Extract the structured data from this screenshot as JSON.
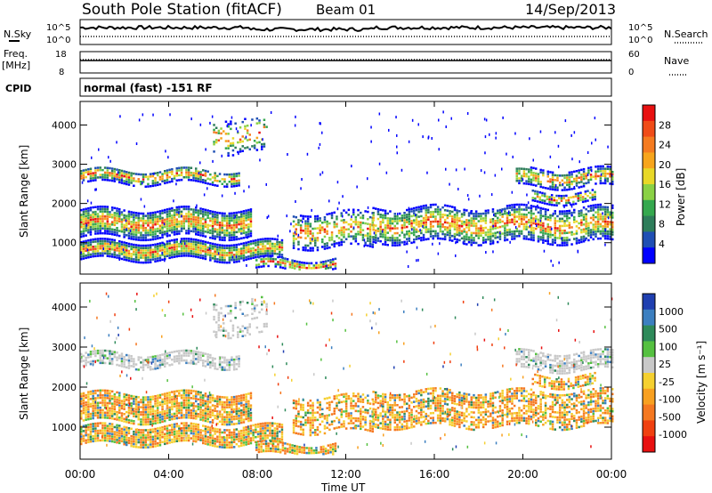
{
  "header": {
    "station": "South Pole Station (fitACF)",
    "beam": "Beam 01",
    "date": "14/Sep/2013"
  },
  "status_panels": {
    "nsky": {
      "label": "N.Sky",
      "top_tick": "10^5",
      "bottom_tick": "10^0"
    },
    "nsearch": {
      "label": "N.Search",
      "top_tick": "10^5",
      "bottom_tick": "10^0"
    },
    "freq": {
      "label_line1": "Freq.",
      "label_line2": "[MHz]",
      "top_tick": "18",
      "bottom_tick": "8"
    },
    "nave": {
      "label": "Nave",
      "top_tick": "60",
      "bottom_tick": "0"
    },
    "cpid": {
      "label": "CPID",
      "value": "normal (fast) -151 RF"
    }
  },
  "colors": {
    "power_scale": [
      "#0000ff",
      "#1f4fb4",
      "#2e7d5a",
      "#35a84e",
      "#8ad145",
      "#e8d828",
      "#f7a51c",
      "#f57b20",
      "#f04c18",
      "#e81010"
    ],
    "velocity_scale": [
      "#1f3fb0",
      "#3c7fc0",
      "#2e8a5a",
      "#55c040",
      "#c8c8c8",
      "#f5d030",
      "#f8a020",
      "#f57820",
      "#f04010",
      "#e81010"
    ]
  },
  "chart_data": [
    {
      "type": "heatmap",
      "name": "power",
      "ylabel": "Slant Range [km]",
      "y_ticks": [
        "1000",
        "2000",
        "3000",
        "4000"
      ],
      "ylim": [
        200,
        4600
      ],
      "x_ticks": [
        "00:00",
        "04:00",
        "08:00",
        "12:00",
        "16:00",
        "20:00",
        "00:00"
      ],
      "colorbar": {
        "label": "Power [dB]",
        "ticks": [
          "4",
          "8",
          "12",
          "16",
          "20",
          "24",
          "28"
        ],
        "range": [
          0,
          30
        ]
      }
    },
    {
      "type": "heatmap",
      "name": "velocity",
      "ylabel": "Slant Range [km]",
      "y_ticks": [
        "1000",
        "2000",
        "3000",
        "4000"
      ],
      "ylim": [
        200,
        4600
      ],
      "x_ticks": [
        "00:00",
        "04:00",
        "08:00",
        "12:00",
        "16:00",
        "20:00",
        "00:00"
      ],
      "xlabel": "Time UT",
      "colorbar": {
        "label": "Velocity [m s⁻¹]",
        "ticks": [
          "1000",
          "500",
          "100",
          "25",
          "-25",
          "-100",
          "-500",
          "-1000"
        ],
        "range": [
          -1000,
          1000
        ]
      }
    }
  ]
}
